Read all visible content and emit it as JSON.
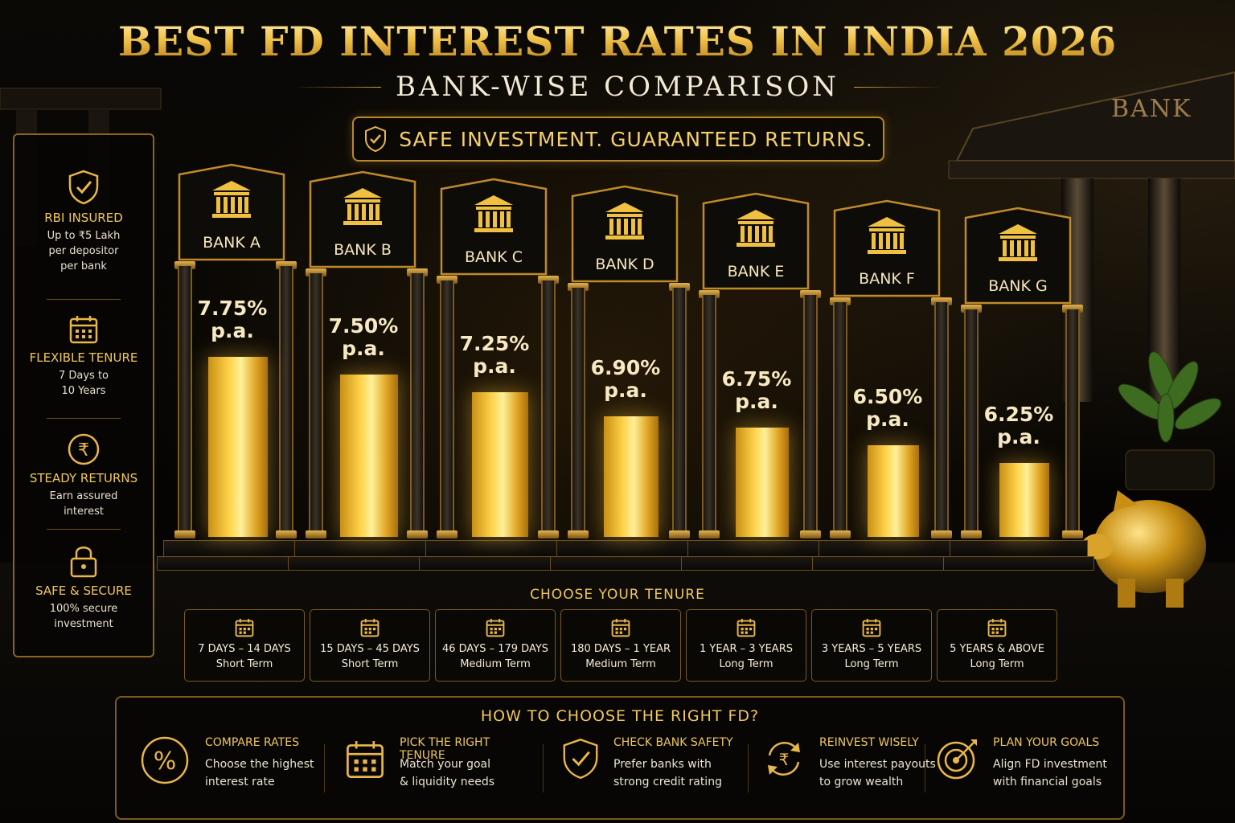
{
  "header": {
    "title": "BEST FD INTEREST RATES IN INDIA 2026",
    "subtitle": "BANK-WISE COMPARISON",
    "tagline": "SAFE INVESTMENT. GUARANTEED RETURNS."
  },
  "background": {
    "building_sign": "BANK"
  },
  "features": [
    {
      "icon": "shield-check-icon",
      "title": "RBI INSURED",
      "lines": [
        "Up to ₹5 Lakh",
        "per depositor",
        "per bank"
      ]
    },
    {
      "icon": "calendar-icon",
      "title": "FLEXIBLE TENURE",
      "lines": [
        "7 Days to",
        "10 Years"
      ]
    },
    {
      "icon": "rupee-coin-icon",
      "title": "STEADY RETURNS",
      "lines": [
        "Earn assured",
        "interest"
      ]
    },
    {
      "icon": "lock-icon",
      "title": "SAFE & SECURE",
      "lines": [
        "100% secure",
        "investment"
      ]
    }
  ],
  "chart_data": {
    "type": "bar",
    "categories": [
      "BANK A",
      "BANK B",
      "BANK C",
      "BANK D",
      "BANK E",
      "BANK F",
      "BANK G"
    ],
    "values": [
      7.75,
      7.5,
      7.25,
      6.9,
      6.75,
      6.5,
      6.25
    ],
    "value_labels": [
      "7.75%",
      "7.50%",
      "7.25%",
      "6.90%",
      "6.75%",
      "6.50%",
      "6.25%"
    ],
    "unit_label": "p.a."
  },
  "tenure": {
    "title": "CHOOSE YOUR TENURE",
    "items": [
      {
        "range": "7 DAYS – 14 DAYS",
        "term": "Short Term"
      },
      {
        "range": "15 DAYS – 45 DAYS",
        "term": "Short Term"
      },
      {
        "range": "46 DAYS – 179 DAYS",
        "term": "Medium Term"
      },
      {
        "range": "180 DAYS – 1 YEAR",
        "term": "Medium Term"
      },
      {
        "range": "1 YEAR – 3 YEARS",
        "term": "Long Term"
      },
      {
        "range": "3 YEARS – 5 YEARS",
        "term": "Long Term"
      },
      {
        "range": "5 YEARS & ABOVE",
        "term": "Long Term"
      }
    ]
  },
  "how_to": {
    "title": "HOW TO CHOOSE THE RIGHT FD?",
    "tips": [
      {
        "icon": "percent-icon",
        "title": "COMPARE RATES",
        "line1": "Choose the highest",
        "line2": "interest rate"
      },
      {
        "icon": "calendar-icon",
        "title": "PICK THE RIGHT TENURE",
        "line1": "Match your goal",
        "line2": "& liquidity needs"
      },
      {
        "icon": "shield-check-icon",
        "title": "CHECK BANK SAFETY",
        "line1": "Prefer banks with",
        "line2": "strong credit rating"
      },
      {
        "icon": "rupee-cycle-icon",
        "title": "REINVEST WISELY",
        "line1": "Use interest payouts",
        "line2": "to grow wealth"
      },
      {
        "icon": "target-icon",
        "title": "PLAN YOUR GOALS",
        "line1": "Align FD investment",
        "line2": "with financial goals"
      }
    ]
  },
  "colors": {
    "gold": "#f0c75a",
    "accent": "#b8862b",
    "background": "#050403"
  }
}
